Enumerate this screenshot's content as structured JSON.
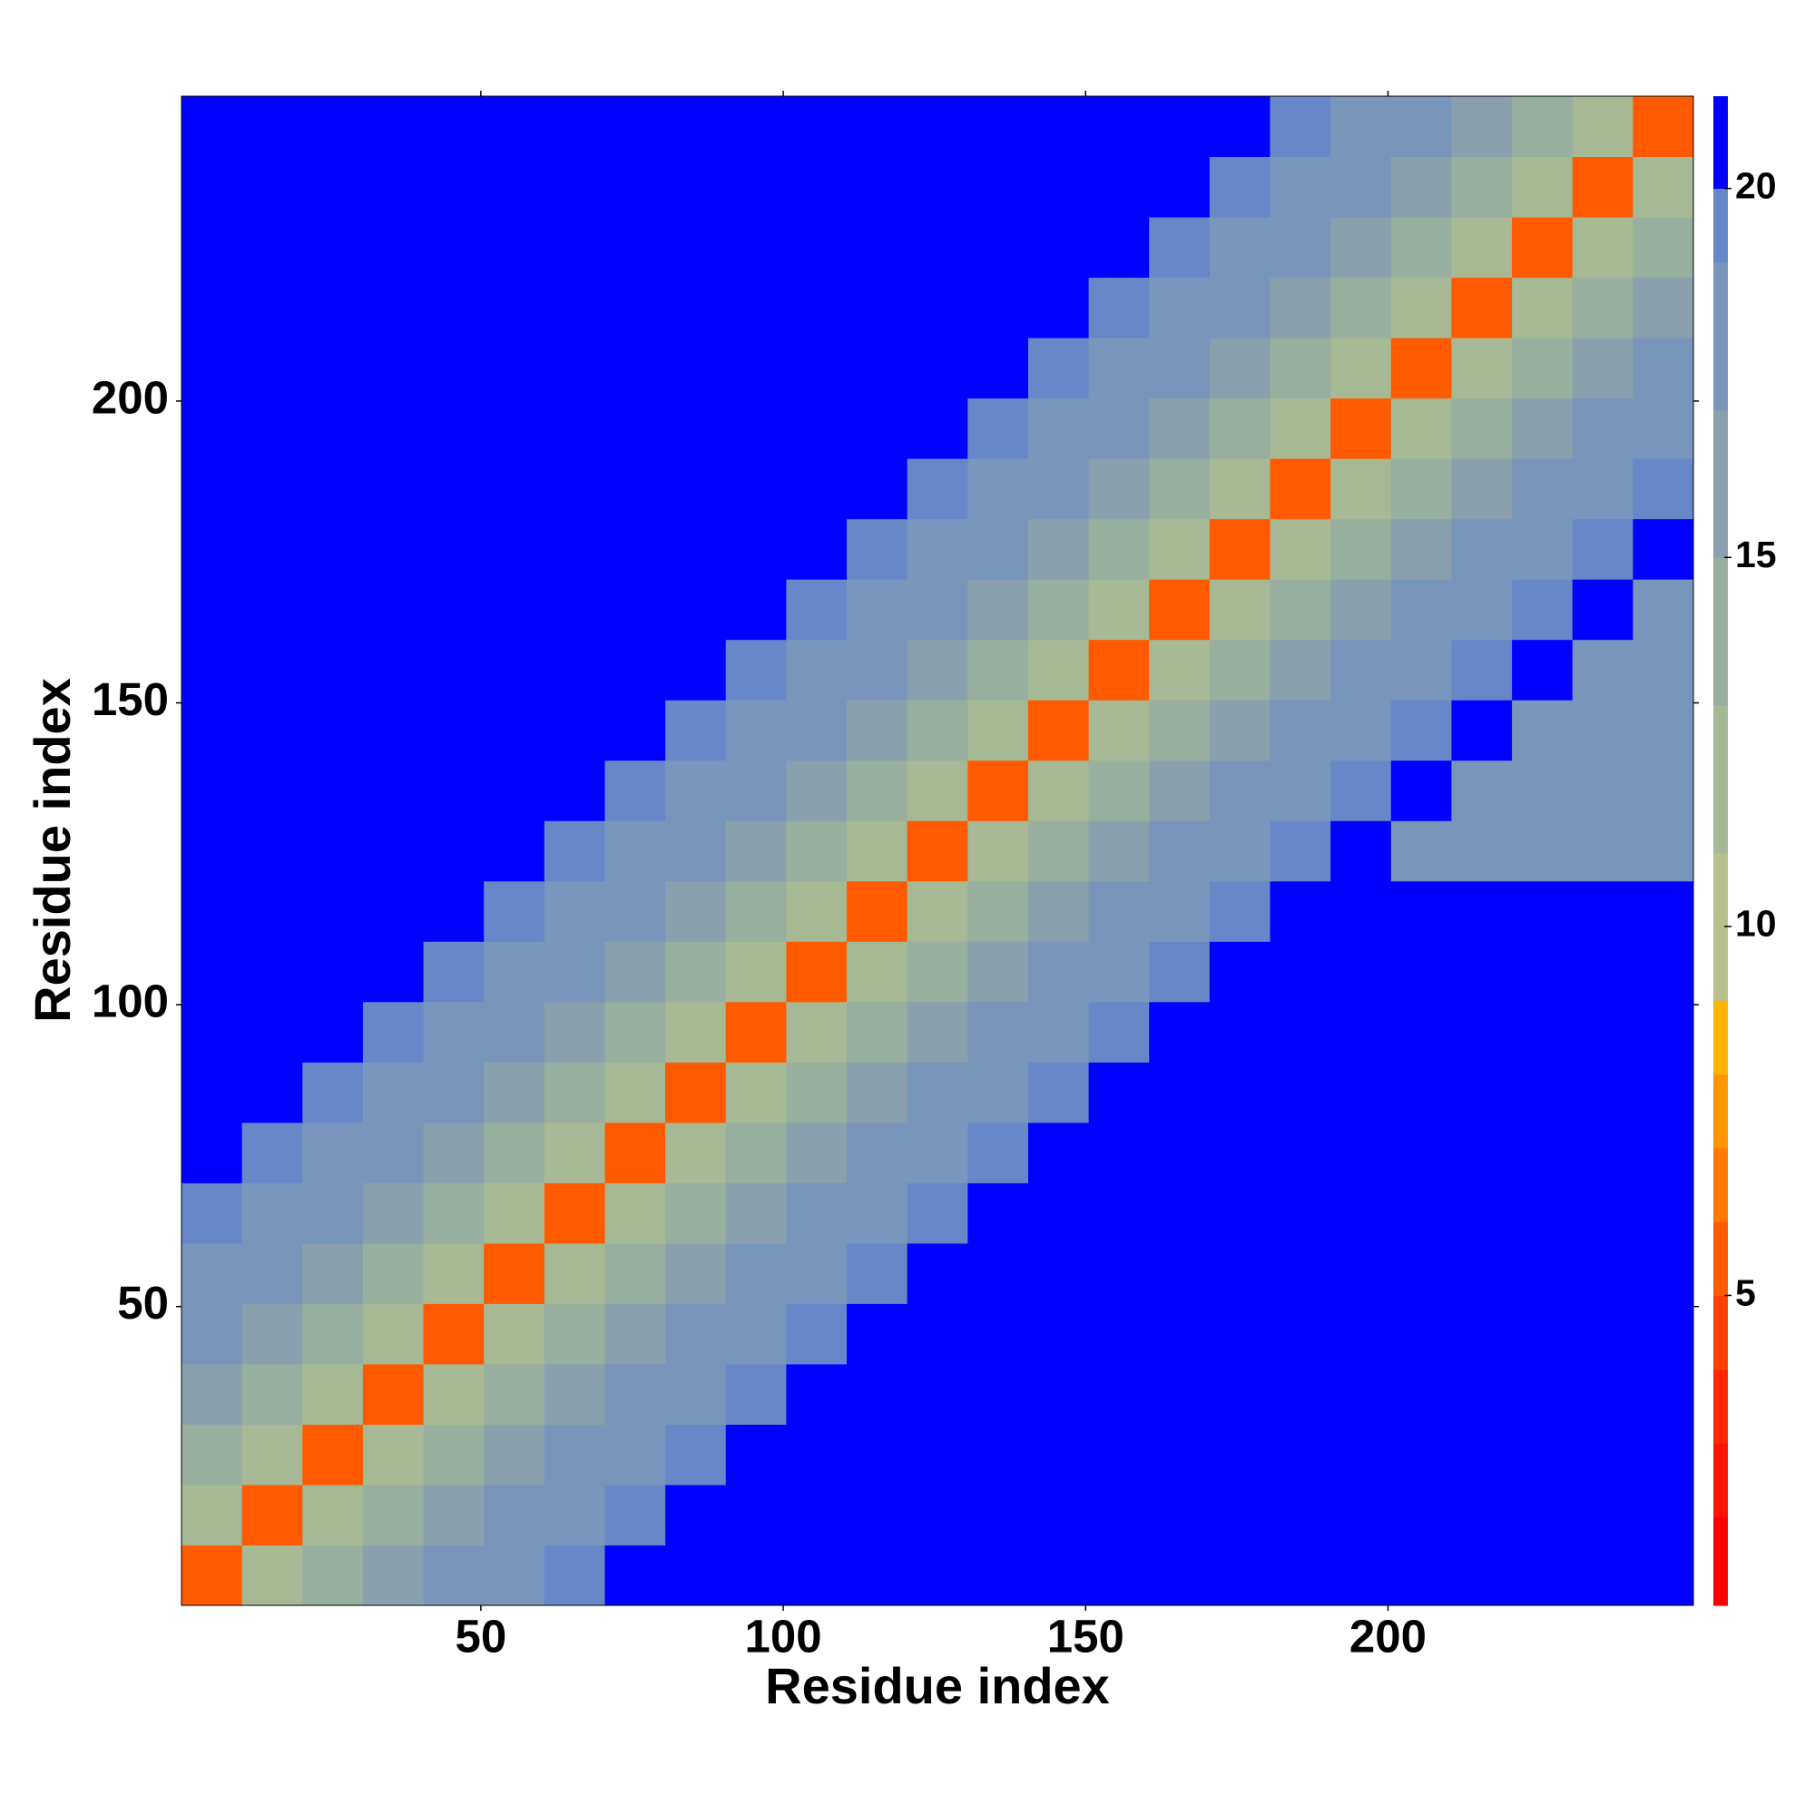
{
  "chart_data": {
    "type": "heatmap",
    "xlabel": "Residue index",
    "ylabel": "Residue index",
    "x": [
      5.5,
      15.5,
      25.5,
      35.5,
      45.5,
      55.5,
      65.5,
      75.5,
      85.5,
      95.5,
      105.5,
      115.5,
      125.5,
      135.5,
      145.5,
      155.5,
      165.5,
      175.5,
      185.5,
      195.5,
      205.5,
      215.5,
      225.5,
      235.5,
      245.5
    ],
    "y": [
      5.5,
      15.5,
      25.5,
      35.5,
      45.5,
      55.5,
      65.5,
      75.5,
      85.5,
      95.5,
      105.5,
      115.5,
      125.5,
      135.5,
      145.5,
      155.5,
      165.5,
      175.5,
      185.5,
      195.5,
      205.5,
      215.5,
      225.5,
      235.5,
      245.5
    ],
    "z": [
      [
        5.5,
        13,
        15,
        16.5,
        17.5,
        18.5,
        19.5,
        20.5,
        21,
        21,
        21,
        21,
        21,
        21,
        21,
        21,
        21,
        21,
        21,
        21,
        21,
        21,
        21,
        21,
        21
      ],
      [
        13,
        5.5,
        13,
        15,
        16.5,
        17.5,
        18.5,
        19.5,
        20.5,
        21,
        21,
        21,
        21,
        21,
        21,
        21,
        21,
        21,
        21,
        21,
        21,
        21,
        21,
        21,
        21
      ],
      [
        15,
        13,
        5.5,
        13,
        15,
        16.5,
        17.5,
        18.5,
        19.5,
        20.5,
        21,
        21,
        21,
        21,
        21,
        21,
        21,
        21,
        21,
        21,
        21,
        21,
        21,
        21,
        21
      ],
      [
        16.5,
        15,
        13,
        5.5,
        13,
        15,
        16.5,
        17.5,
        18.5,
        19.5,
        20.5,
        21,
        21,
        21,
        21,
        21,
        21,
        21,
        21,
        21,
        21,
        21,
        21,
        21,
        21
      ],
      [
        17.5,
        16.5,
        15,
        13,
        5.5,
        13,
        15,
        16.5,
        17.5,
        18.5,
        19.5,
        20.5,
        21,
        21,
        21,
        21,
        21,
        21,
        21,
        21,
        21,
        21,
        21,
        21,
        21
      ],
      [
        18.5,
        17.5,
        16.5,
        15,
        13,
        5.5,
        13,
        15,
        16.5,
        17.5,
        18.5,
        19.5,
        20.5,
        21,
        21,
        21,
        21,
        21,
        21,
        21,
        21,
        21,
        21,
        21,
        21
      ],
      [
        19.5,
        18.5,
        17.5,
        16.5,
        15,
        13,
        5.5,
        13,
        15,
        16.5,
        17.5,
        18.5,
        19.5,
        20.5,
        21,
        21,
        21,
        21,
        21,
        21,
        21,
        21,
        21,
        21,
        21
      ],
      [
        20.5,
        19.5,
        18.5,
        17.5,
        16.5,
        15,
        13,
        5.5,
        13,
        15,
        16.5,
        17.5,
        18.5,
        19.5,
        20.5,
        21,
        21,
        21,
        21,
        21,
        21,
        21,
        21,
        21,
        21
      ],
      [
        21,
        20.5,
        19.5,
        18.5,
        17.5,
        16.5,
        15,
        13,
        5.5,
        13,
        15,
        16.5,
        17.5,
        18.5,
        19.5,
        20.5,
        21,
        21,
        21,
        21,
        21,
        21,
        21,
        21,
        21
      ],
      [
        21,
        21,
        20.5,
        19.5,
        18.5,
        17.5,
        16.5,
        15,
        13,
        5.5,
        13,
        15,
        16.5,
        17.5,
        18.5,
        19.5,
        20.5,
        21,
        21,
        21,
        21,
        21,
        21,
        21,
        21
      ],
      [
        21,
        21,
        21,
        20.5,
        19.5,
        18.5,
        17.5,
        16.5,
        15,
        13,
        5.5,
        13,
        15,
        16.5,
        17.5,
        18.5,
        19.5,
        20.5,
        21,
        21,
        21,
        21,
        21,
        21,
        21
      ],
      [
        21,
        21,
        21,
        21,
        20.5,
        19.5,
        18.5,
        17.5,
        16.5,
        15,
        13,
        5.5,
        13,
        15,
        16.5,
        17.5,
        18.5,
        19.5,
        20.5,
        21,
        21,
        21,
        21,
        21,
        21
      ],
      [
        21,
        21,
        21,
        21,
        21,
        20.5,
        19.5,
        18.5,
        17.5,
        16.5,
        15,
        13,
        5.5,
        13,
        15,
        16.5,
        17.5,
        18.5,
        19.5,
        20.5,
        18.5,
        18.5,
        18.5,
        18.5,
        18.5
      ],
      [
        21,
        21,
        21,
        21,
        21,
        21,
        20.5,
        19.5,
        18.5,
        17.5,
        16.5,
        15,
        13,
        5.5,
        13,
        15,
        16.5,
        17.5,
        18.5,
        19.5,
        20.5,
        18.5,
        18.5,
        18.5,
        18.5
      ],
      [
        21,
        21,
        21,
        21,
        21,
        21,
        21,
        20.5,
        19.5,
        18.5,
        17.5,
        16.5,
        15,
        13,
        5.5,
        13,
        15,
        16.5,
        17.5,
        18.5,
        19.5,
        20.5,
        18.5,
        18.5,
        18.5
      ],
      [
        21,
        21,
        21,
        21,
        21,
        21,
        21,
        21,
        20.5,
        19.5,
        18.5,
        17.5,
        16.5,
        15,
        13,
        5.5,
        13,
        15,
        16.5,
        17.5,
        18.5,
        19.5,
        20.5,
        18.5,
        18.5
      ],
      [
        21,
        21,
        21,
        21,
        21,
        21,
        21,
        21,
        21,
        20.5,
        19.5,
        18.5,
        17.5,
        16.5,
        15,
        13,
        5.5,
        13,
        15,
        16.5,
        17.5,
        18.5,
        19.5,
        20.5,
        18.5
      ],
      [
        21,
        21,
        21,
        21,
        21,
        21,
        21,
        21,
        21,
        21,
        20.5,
        19.5,
        18.5,
        17.5,
        16.5,
        15,
        13,
        5.5,
        13,
        15,
        16.5,
        17.5,
        18.5,
        19.5,
        20.5
      ],
      [
        21,
        21,
        21,
        21,
        21,
        21,
        21,
        21,
        21,
        21,
        21,
        20.5,
        19.5,
        18.5,
        17.5,
        16.5,
        15,
        13,
        5.5,
        13,
        15,
        16.5,
        17.5,
        18.5,
        19.5
      ],
      [
        21,
        21,
        21,
        21,
        21,
        21,
        21,
        21,
        21,
        21,
        21,
        21,
        20.5,
        19.5,
        18.5,
        17.5,
        16.5,
        15,
        13,
        5.5,
        13,
        15,
        16.5,
        17.5,
        18.5
      ],
      [
        21,
        21,
        21,
        21,
        21,
        21,
        21,
        21,
        21,
        21,
        21,
        21,
        21,
        20.5,
        19.5,
        18.5,
        17.5,
        16.5,
        15,
        13,
        5.5,
        13,
        15,
        16.5,
        17.5
      ],
      [
        21,
        21,
        21,
        21,
        21,
        21,
        21,
        21,
        21,
        21,
        21,
        21,
        21,
        21,
        20.5,
        19.5,
        18.5,
        17.5,
        16.5,
        15,
        13,
        5.5,
        13,
        15,
        16.5
      ],
      [
        21,
        21,
        21,
        21,
        21,
        21,
        21,
        21,
        21,
        21,
        21,
        21,
        21,
        21,
        21,
        20.5,
        19.5,
        18.5,
        17.5,
        16.5,
        15,
        13,
        5.5,
        13,
        15
      ],
      [
        21,
        21,
        21,
        21,
        21,
        21,
        21,
        21,
        21,
        21,
        21,
        21,
        21,
        21,
        21,
        21,
        20.5,
        19.5,
        18.5,
        17.5,
        16.5,
        15,
        13,
        5.5,
        13
      ],
      [
        21,
        21,
        21,
        21,
        21,
        21,
        21,
        21,
        21,
        21,
        21,
        21,
        21,
        21,
        21,
        21,
        21,
        20.5,
        19.5,
        18.5,
        17.5,
        16.5,
        15,
        13,
        5.5
      ]
    ],
    "xlim": [
      0.5,
      250.5
    ],
    "ylim": [
      0.5,
      250.5
    ],
    "xticks": [
      50,
      100,
      150,
      200
    ],
    "yticks": [
      50,
      100,
      150,
      200
    ],
    "colorbar": {
      "bounds": [
        0.8,
        2,
        3,
        4,
        5,
        6,
        7,
        8,
        9,
        11,
        13,
        15,
        17,
        19,
        20,
        21.25
      ],
      "colors": [
        "#ff0000",
        "#ff1400",
        "#ff2800",
        "#ff4000",
        "#ff5a00",
        "#ff7800",
        "#ff9600",
        "#ffb400",
        "#b8bf8a",
        "#a6b894",
        "#98ae9e",
        "#8aa0ac",
        "#7896bc",
        "#6688c8",
        "#0000ff"
      ],
      "ticks": [
        5,
        10,
        15,
        20
      ]
    }
  }
}
